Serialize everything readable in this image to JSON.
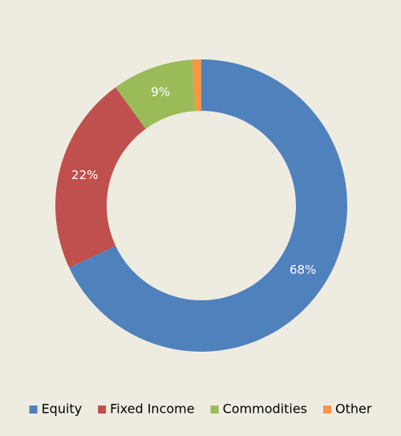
{
  "chart_data": {
    "type": "donut",
    "categories": [
      "Equity",
      "Fixed Income",
      "Commodities",
      "Other"
    ],
    "values": [
      68,
      22,
      9,
      1
    ],
    "value_labels": [
      "68%",
      "22%",
      "9%",
      null
    ],
    "colors": [
      "#4f81bd",
      "#c0504d",
      "#9bbb59",
      "#f79646"
    ],
    "legend": "bottom"
  }
}
